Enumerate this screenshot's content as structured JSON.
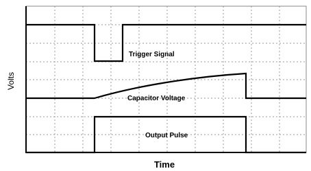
{
  "axes": {
    "y_label": "Volts",
    "x_label": "Time"
  },
  "signals": [
    {
      "label": "Trigger Signal"
    },
    {
      "label": "Capacitor Voltage"
    },
    {
      "label": "Output Pulse"
    }
  ]
}
